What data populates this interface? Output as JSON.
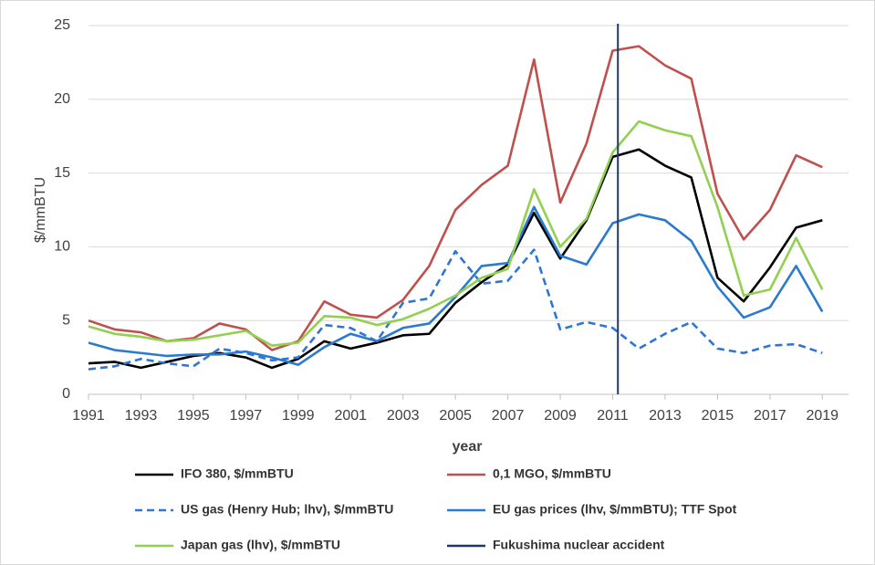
{
  "chart_data": {
    "type": "line",
    "x_label": "year",
    "y_label": "$/mmBTU",
    "x": [
      1991,
      1992,
      1993,
      1994,
      1995,
      1996,
      1997,
      1998,
      1999,
      2000,
      2001,
      2002,
      2003,
      2004,
      2005,
      2006,
      2007,
      2008,
      2009,
      2010,
      2011,
      2012,
      2013,
      2014,
      2015,
      2016,
      2017,
      2018,
      2019
    ],
    "xlim": [
      1991,
      2020
    ],
    "xticks": [
      1991,
      1993,
      1995,
      1997,
      1999,
      2001,
      2003,
      2005,
      2007,
      2009,
      2011,
      2013,
      2015,
      2017,
      2019
    ],
    "ylim": [
      0,
      25
    ],
    "yticks": [
      0,
      5,
      10,
      15,
      20,
      25
    ],
    "grid": true,
    "series": [
      {
        "name": "IFO 380, $/mmBTU",
        "color": "#000000",
        "dashed": false,
        "values": [
          2.1,
          2.2,
          1.8,
          2.2,
          2.6,
          2.8,
          2.5,
          1.8,
          2.4,
          3.6,
          3.1,
          3.5,
          4.0,
          4.1,
          6.2,
          7.6,
          8.8,
          12.3,
          9.2,
          11.8,
          16.1,
          16.6,
          15.5,
          14.7,
          7.9,
          6.3,
          8.6,
          11.3,
          11.8
        ]
      },
      {
        "name": "0,1 MGO, $/mmBTU",
        "color": "#c0504d",
        "dashed": false,
        "values": [
          5.0,
          4.4,
          4.2,
          3.6,
          3.8,
          4.8,
          4.4,
          3.0,
          3.6,
          6.3,
          5.4,
          5.2,
          6.4,
          8.7,
          12.5,
          14.2,
          15.5,
          22.7,
          13.0,
          17.0,
          23.3,
          23.6,
          22.3,
          21.4,
          13.6,
          10.5,
          12.5,
          16.2,
          15.4
        ]
      },
      {
        "name": "US gas (Henry Hub; lhv), $/mmBTU",
        "color": "#2e75d6",
        "dashed": true,
        "values": [
          1.7,
          1.9,
          2.4,
          2.1,
          1.9,
          3.1,
          2.8,
          2.3,
          2.5,
          4.7,
          4.5,
          3.6,
          6.2,
          6.5,
          9.7,
          7.5,
          7.7,
          9.8,
          4.4,
          4.9,
          4.5,
          3.1,
          4.1,
          4.9,
          3.1,
          2.8,
          3.3,
          3.4,
          2.8
        ]
      },
      {
        "name": "EU gas prices (lhv, $/mmBTU); TTF Spot",
        "color": "#2a7ad0",
        "dashed": false,
        "values": [
          3.5,
          3.0,
          2.8,
          2.6,
          2.7,
          2.7,
          2.9,
          2.5,
          2.0,
          3.2,
          4.1,
          3.6,
          4.5,
          4.8,
          6.6,
          8.7,
          8.9,
          12.7,
          9.4,
          8.8,
          11.6,
          12.2,
          11.8,
          10.4,
          7.3,
          5.2,
          5.9,
          8.7,
          5.6
        ]
      },
      {
        "name": "Japan gas (lhv), $/mmBTU",
        "color": "#92d050",
        "dashed": false,
        "values": [
          4.6,
          4.1,
          3.9,
          3.6,
          3.7,
          4.0,
          4.3,
          3.3,
          3.5,
          5.3,
          5.2,
          4.7,
          5.1,
          5.8,
          6.7,
          7.9,
          8.5,
          13.9,
          10.0,
          11.9,
          16.4,
          18.5,
          17.9,
          17.5,
          12.7,
          6.7,
          7.1,
          10.6,
          7.1
        ]
      }
    ],
    "annotation_line": {
      "name": "Fukushima nuclear accident",
      "x": 2011.2,
      "color": "#1f3864"
    }
  }
}
